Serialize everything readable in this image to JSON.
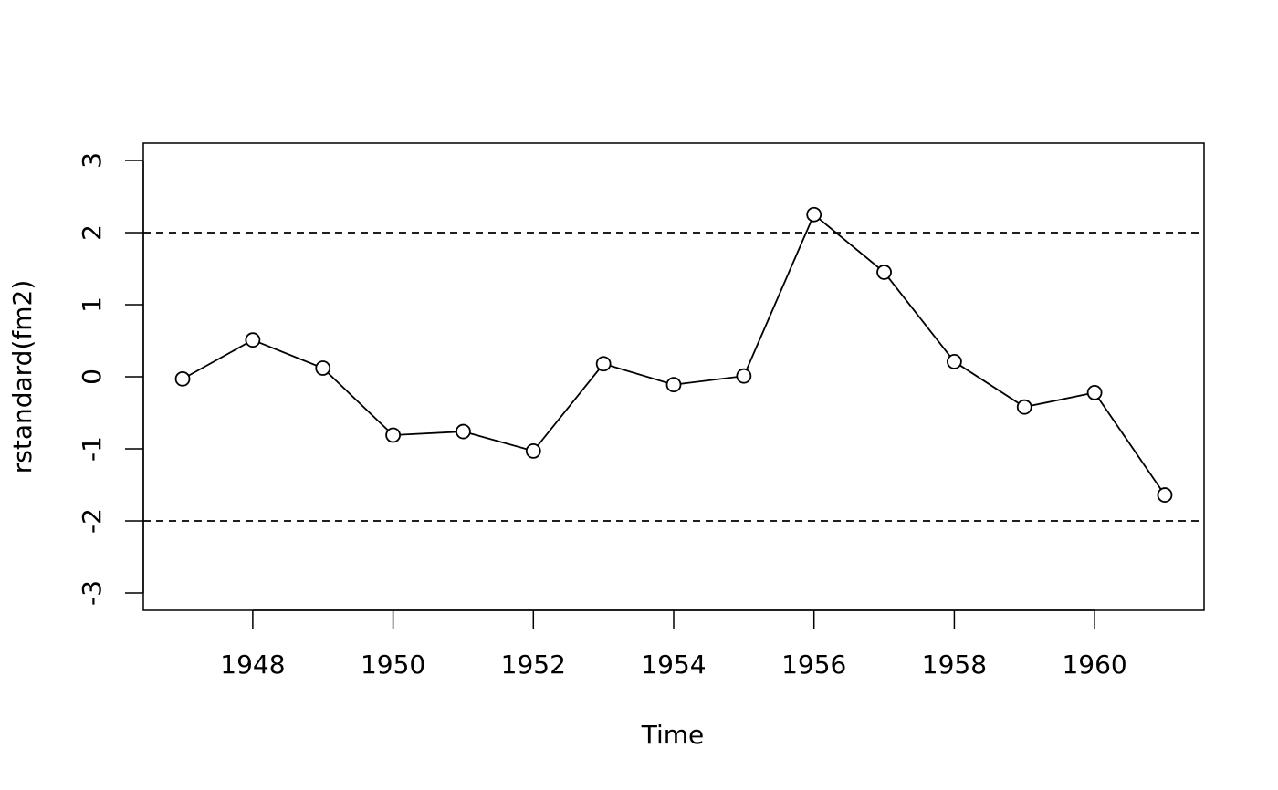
{
  "chart_data": {
    "type": "line",
    "x_label": "Time",
    "y_label": "rstandard(fm2)",
    "x": [
      1947,
      1948,
      1949,
      1950,
      1951,
      1952,
      1953,
      1954,
      1955,
      1956,
      1957,
      1958,
      1959,
      1960,
      1961
    ],
    "series": [
      {
        "color": "#000000",
        "values": [
          -0.03,
          0.51,
          0.12,
          -0.81,
          -0.76,
          -1.03,
          0.18,
          -0.11,
          0.01,
          2.25,
          1.45,
          0.21,
          -0.42,
          -0.22,
          -1.64
        ]
      }
    ],
    "xlim": [
      1946.44,
      1961.56
    ],
    "ylim": [
      -3.24,
      3.24
    ],
    "xticks": [
      1948,
      1950,
      1952,
      1954,
      1956,
      1958,
      1960
    ],
    "yticks": [
      -3,
      -2,
      -1,
      0,
      1,
      2,
      3
    ],
    "reference_lines": [
      2,
      -2
    ]
  }
}
